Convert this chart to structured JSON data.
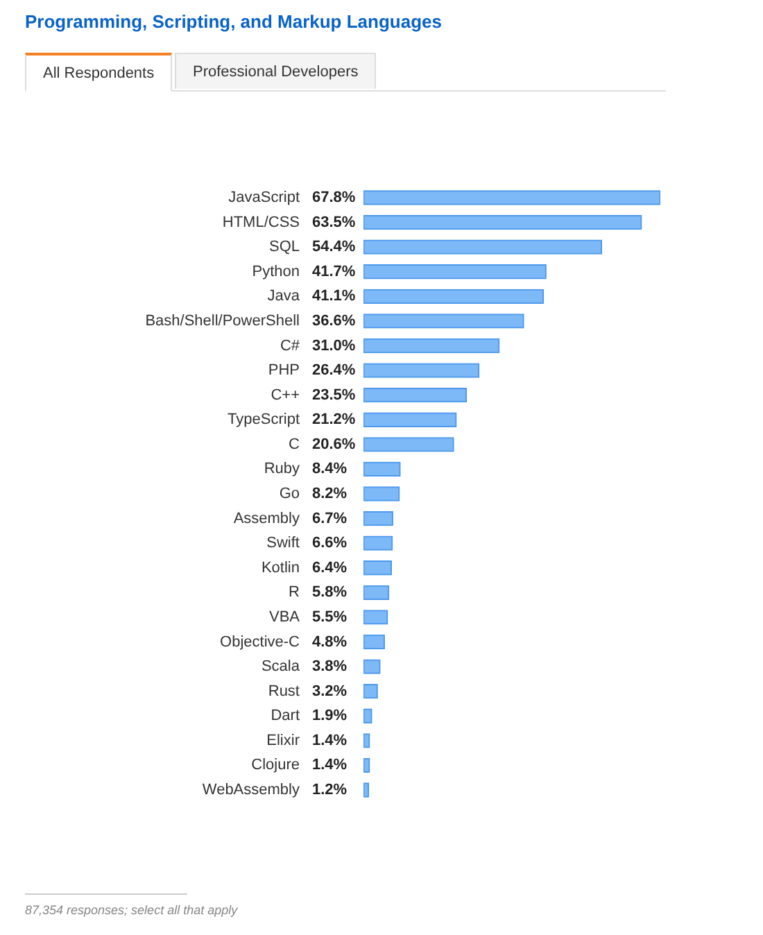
{
  "chart_data": {
    "type": "bar",
    "orientation": "horizontal",
    "title": "Programming, Scripting, and Markup Languages",
    "annotations": [
      "All Respondents",
      "Professional Developers",
      "87,354 responses; select all that apply"
    ],
    "categories": [
      "JavaScript",
      "HTML/CSS",
      "SQL",
      "Python",
      "Java",
      "Bash/Shell/PowerShell",
      "C#",
      "PHP",
      "C++",
      "TypeScript",
      "C",
      "Ruby",
      "Go",
      "Assembly",
      "Swift",
      "Kotlin",
      "R",
      "VBA",
      "Objective-C",
      "Scala",
      "Rust",
      "Dart",
      "Elixir",
      "Clojure",
      "WebAssembly"
    ],
    "values": [
      67.8,
      63.5,
      54.4,
      41.7,
      41.1,
      36.6,
      31.0,
      26.4,
      23.5,
      21.2,
      20.6,
      8.4,
      8.2,
      6.7,
      6.6,
      6.4,
      5.8,
      5.5,
      4.8,
      3.8,
      3.2,
      1.9,
      1.4,
      1.4,
      1.2
    ],
    "value_labels": [
      "67.8%",
      "63.5%",
      "54.4%",
      "41.7%",
      "41.1%",
      "36.6%",
      "31.0%",
      "26.4%",
      "23.5%",
      "21.2%",
      "20.6%",
      "8.4%",
      "8.2%",
      "6.7%",
      "6.6%",
      "6.4%",
      "5.8%",
      "5.5%",
      "4.8%",
      "3.8%",
      "3.2%",
      "1.9%",
      "1.4%",
      "1.4%",
      "1.2%"
    ],
    "color": "#7db8f7",
    "grid": false,
    "legend": false
  }
}
